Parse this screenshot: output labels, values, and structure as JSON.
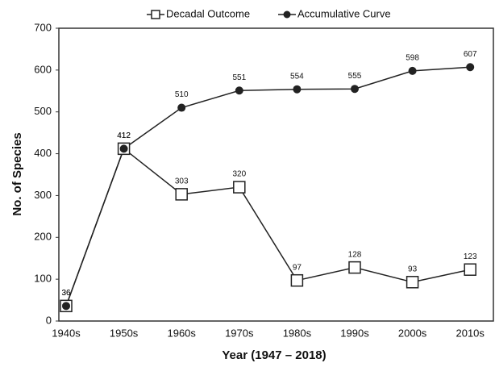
{
  "chart_data": {
    "type": "line",
    "categories": [
      "1940s",
      "1950s",
      "1960s",
      "1970s",
      "1980s",
      "1990s",
      "2000s",
      "2010s"
    ],
    "series": [
      {
        "name": "Decadal Outcome",
        "color": "#222222",
        "marker": "square-open",
        "values": [
          36,
          412,
          303,
          320,
          97,
          128,
          93,
          123
        ]
      },
      {
        "name": "Accumulative Curve",
        "color": "#222222",
        "marker": "circle-filled",
        "values": [
          36,
          412,
          510,
          551,
          554,
          555,
          598,
          607
        ]
      }
    ],
    "xlabel": "Year (1947 – 2018)",
    "ylabel": "No. of Species",
    "ylim": [
      0,
      700
    ],
    "yticks": [
      0,
      100,
      200,
      300,
      400,
      500,
      600,
      700
    ],
    "grid": false,
    "legend": "top"
  }
}
